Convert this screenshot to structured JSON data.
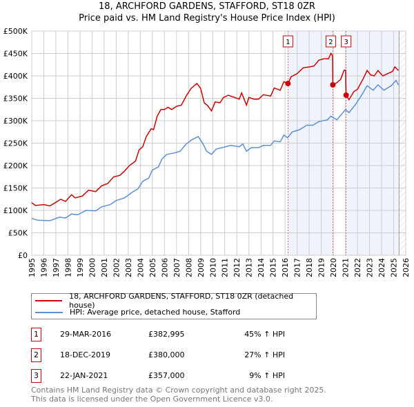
{
  "chart_data": {
    "type": "line",
    "title": "18, ARCHFORD GARDENS, STAFFORD, ST18 0ZR",
    "subtitle": "Price paid vs. HM Land Registry's House Price Index (HPI)",
    "xlim": [
      1995,
      2026
    ],
    "ylim": [
      0,
      500000
    ],
    "x_ticks": [
      "1995",
      "1996",
      "1997",
      "1998",
      "1999",
      "2000",
      "2001",
      "2002",
      "2003",
      "2004",
      "2005",
      "2006",
      "2007",
      "2008",
      "2009",
      "2010",
      "2011",
      "2012",
      "2013",
      "2014",
      "2015",
      "2016",
      "2017",
      "2018",
      "2019",
      "2020",
      "2021",
      "2022",
      "2023",
      "2024",
      "2025",
      "2026"
    ],
    "y_ticks": [
      {
        "v": 0,
        "l": "£0"
      },
      {
        "v": 50000,
        "l": "£50K"
      },
      {
        "v": 100000,
        "l": "£100K"
      },
      {
        "v": 150000,
        "l": "£150K"
      },
      {
        "v": 200000,
        "l": "£200K"
      },
      {
        "v": 250000,
        "l": "£250K"
      },
      {
        "v": 300000,
        "l": "£300K"
      },
      {
        "v": 350000,
        "l": "£350K"
      },
      {
        "v": 400000,
        "l": "£400K"
      },
      {
        "v": 450000,
        "l": "£450K"
      },
      {
        "v": 500000,
        "l": "£500K"
      }
    ],
    "grid": true,
    "series": [
      {
        "name": "18, ARCHFORD GARDENS, STAFFORD, ST18 0ZR (detached house)",
        "color": "#cc0000",
        "x": [
          1995.0,
          1995.3,
          1996,
          1996.5,
          1997,
          1997.4,
          1997.8,
          1998.3,
          1998.6,
          1999.2,
          1999.7,
          2000.3,
          2000.8,
          2001.3,
          2001.8,
          2002.3,
          2002.7,
          2003.1,
          2003.6,
          2003.9,
          2004.2,
          2004.5,
          2004.9,
          2005.1,
          2005.4,
          2005.7,
          2006.0,
          2006.3,
          2006.6,
          2007.0,
          2007.4,
          2007.8,
          2008.2,
          2008.7,
          2009.0,
          2009.3,
          2009.6,
          2009.9,
          2010.2,
          2010.6,
          2010.9,
          2011.3,
          2011.8,
          2012.2,
          2012.4,
          2012.8,
          2013.0,
          2013.4,
          2013.8,
          2014.2,
          2014.8,
          2015.1,
          2015.6,
          2015.9,
          2016.24,
          2016.5,
          2017,
          2017.5,
          2018,
          2018.4,
          2018.8,
          2019.2,
          2019.6,
          2019.8,
          2019.94,
          2019.96,
          2020.3,
          2020.6,
          2020.9,
          2021.02,
          2021.06,
          2021.3,
          2021.7,
          2022,
          2022.5,
          2022.8,
          2023.1,
          2023.4,
          2023.7,
          2024.1,
          2024.5,
          2024.9,
          2025.1,
          2025.4
        ],
        "y": [
          117000,
          111000,
          113000,
          110000,
          118000,
          125000,
          120000,
          135000,
          128000,
          132000,
          145000,
          142000,
          155000,
          160000,
          175000,
          178000,
          188000,
          200000,
          210000,
          235000,
          242000,
          265000,
          282000,
          280000,
          310000,
          325000,
          325000,
          330000,
          325000,
          332000,
          335000,
          355000,
          372000,
          383000,
          372000,
          340000,
          333000,
          322000,
          342000,
          340000,
          352000,
          357000,
          352000,
          348000,
          362000,
          335000,
          352000,
          348000,
          348000,
          358000,
          355000,
          373000,
          368000,
          387000,
          382995,
          398000,
          405000,
          418000,
          420000,
          422000,
          435000,
          438000,
          438000,
          450000,
          445000,
          380000,
          385000,
          392000,
          413000,
          412000,
          357000,
          347000,
          365000,
          370000,
          395000,
          412000,
          402000,
          400000,
          412000,
          400000,
          405000,
          410000,
          420000,
          412000
        ]
      },
      {
        "name": "HPI: Average price, detached house, Stafford",
        "color": "#5b8fd4",
        "x": [
          1995,
          1995.5,
          1996.5,
          1997.3,
          1997.8,
          1998.3,
          1998.8,
          1999.5,
          2000.3,
          2000.8,
          2001.5,
          2002,
          2002.7,
          2003.3,
          2003.8,
          2004.2,
          2004.7,
          2005.0,
          2005.5,
          2005.8,
          2006.2,
          2006.8,
          2007.3,
          2007.8,
          2008.3,
          2008.8,
          2009.2,
          2009.5,
          2009.9,
          2010.3,
          2010.8,
          2011.5,
          2012.2,
          2012.5,
          2012.8,
          2013.2,
          2013.8,
          2014.2,
          2014.8,
          2015.1,
          2015.6,
          2015.9,
          2016.2,
          2016.6,
          2017.2,
          2017.8,
          2018.3,
          2018.8,
          2019.5,
          2019.8,
          2020.3,
          2020.7,
          2021.0,
          2021.3,
          2021.8,
          2022.3,
          2022.8,
          2023.3,
          2023.7,
          2024.2,
          2024.8,
          2025.2,
          2025.4
        ],
        "y": [
          82000,
          78000,
          77000,
          85000,
          83000,
          92000,
          90000,
          100000,
          99000,
          108000,
          113000,
          122000,
          128000,
          140000,
          148000,
          165000,
          172000,
          190000,
          197000,
          215000,
          225000,
          228000,
          232000,
          248000,
          258000,
          265000,
          248000,
          232000,
          225000,
          237000,
          240000,
          245000,
          242000,
          248000,
          232000,
          240000,
          240000,
          245000,
          245000,
          255000,
          253000,
          268000,
          262000,
          275000,
          280000,
          290000,
          290000,
          298000,
          302000,
          310000,
          302000,
          315000,
          325000,
          318000,
          335000,
          355000,
          378000,
          368000,
          380000,
          368000,
          378000,
          390000,
          380000
        ]
      }
    ],
    "sales": [
      {
        "n": "1",
        "date": "29-MAR-2016",
        "x": 2016.24,
        "price": "£382,995",
        "value": 382995,
        "hpi": "45% ↑ HPI"
      },
      {
        "n": "2",
        "date": "18-DEC-2019",
        "x": 2019.96,
        "price": "£380,000",
        "value": 380000,
        "hpi": "27% ↑ HPI"
      },
      {
        "n": "3",
        "date": "22-JAN-2021",
        "x": 2021.06,
        "price": "£357,000",
        "value": 357000,
        "hpi": "9% ↑ HPI"
      }
    ],
    "forecast_start": 2025.45
  },
  "footer": {
    "line1": "Contains HM Land Registry data © Crown copyright and database right 2025.",
    "line2": "This data is licensed under the Open Government Licence v3.0."
  }
}
